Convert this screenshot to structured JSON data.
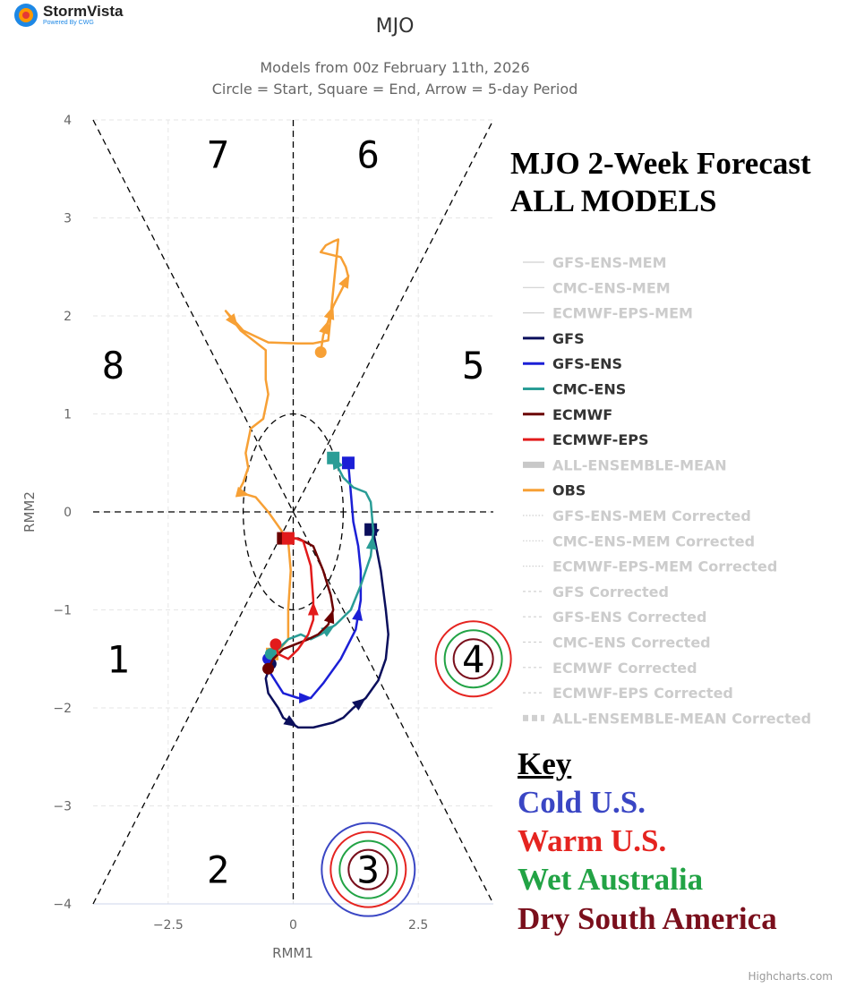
{
  "logo": {
    "name": "StormVista",
    "sub": "Powered By CWG"
  },
  "credits": "Highcharts.com",
  "overlay": {
    "headline": [
      "MJO 2-Week Forecast",
      "ALL MODELS"
    ],
    "key_title": "Key",
    "key_items": [
      {
        "label": "Cold U.S.",
        "color": "#3a46c4"
      },
      {
        "label": "Warm U.S.",
        "color": "#e52420"
      },
      {
        "label": "Wet Australia",
        "color": "#22a345"
      },
      {
        "label": "Dry South America",
        "color": "#7a0f1c"
      }
    ]
  },
  "chart_data": {
    "type": "line",
    "title": "MJO",
    "subtitle": [
      "Models from 00z February 11th, 2026",
      "Circle = Start, Square = End, Arrow = 5-day Period"
    ],
    "xlabel": "RMM1",
    "ylabel": "RMM2",
    "xlim": [
      -4,
      4
    ],
    "ylim": [
      -4,
      4
    ],
    "xticks": [
      -2.5,
      0,
      2.5
    ],
    "xtick_labels": [
      "−2.5",
      "0",
      "2.5"
    ],
    "yticks": [
      -4,
      -3,
      -2,
      -1,
      0,
      1,
      2,
      3,
      4
    ],
    "ytick_labels": [
      "−4",
      "−3",
      "−2",
      "−1",
      "0",
      "1",
      "2",
      "3",
      "4"
    ],
    "phase_labels": [
      {
        "phase": "1",
        "x": -3.5,
        "y": -1.5
      },
      {
        "phase": "2",
        "x": -1.5,
        "y": -3.65
      },
      {
        "phase": "3",
        "x": 1.5,
        "y": -3.65
      },
      {
        "phase": "4",
        "x": 3.6,
        "y": -1.5
      },
      {
        "phase": "5",
        "x": 3.6,
        "y": 1.5
      },
      {
        "phase": "6",
        "x": 1.5,
        "y": 3.65
      },
      {
        "phase": "7",
        "x": -1.5,
        "y": 3.65
      },
      {
        "phase": "8",
        "x": -3.6,
        "y": 1.5
      }
    ],
    "phase_rings": [
      {
        "x": 1.5,
        "y": -3.65,
        "rings": [
          "#3a46c4",
          "#e52420",
          "#22a345",
          "#7a0f1c"
        ]
      },
      {
        "x": 3.6,
        "y": -1.5,
        "rings": [
          "#e52420",
          "#22a345",
          "#7a0f1c"
        ]
      }
    ],
    "legend": [
      {
        "name": "GFS-ENS-MEM",
        "color": "#d0d0d0",
        "style": "faded-line"
      },
      {
        "name": "CMC-ENS-MEM",
        "color": "#d0d0d0",
        "style": "faded-line"
      },
      {
        "name": "ECMWF-EPS-MEM",
        "color": "#d0d0d0",
        "style": "faded-line"
      },
      {
        "name": "GFS",
        "color": "#0b0f5c",
        "style": "line"
      },
      {
        "name": "GFS-ENS",
        "color": "#1b1fd6",
        "style": "line"
      },
      {
        "name": "CMC-ENS",
        "color": "#2a9d96",
        "style": "line"
      },
      {
        "name": "ECMWF",
        "color": "#6b0000",
        "style": "line"
      },
      {
        "name": "ECMWF-EPS",
        "color": "#e21b1b",
        "style": "line"
      },
      {
        "name": "ALL-ENSEMBLE-MEAN",
        "color": "#c8c8c8",
        "style": "faded-thick"
      },
      {
        "name": "OBS",
        "color": "#f7a035",
        "style": "line"
      },
      {
        "name": "GFS-ENS-MEM Corrected",
        "color": "#d0d0d0",
        "style": "faded-dotted"
      },
      {
        "name": "CMC-ENS-MEM Corrected",
        "color": "#d0d0d0",
        "style": "faded-dotted"
      },
      {
        "name": "ECMWF-EPS-MEM Corrected",
        "color": "#d0d0d0",
        "style": "faded-dotted"
      },
      {
        "name": "GFS Corrected",
        "color": "#d0d0d0",
        "style": "faded-dashed"
      },
      {
        "name": "GFS-ENS Corrected",
        "color": "#d0d0d0",
        "style": "faded-dashed"
      },
      {
        "name": "CMC-ENS Corrected",
        "color": "#d0d0d0",
        "style": "faded-dashed"
      },
      {
        "name": "ECMWF Corrected",
        "color": "#d0d0d0",
        "style": "faded-dashed"
      },
      {
        "name": "ECMWF-EPS Corrected",
        "color": "#d0d0d0",
        "style": "faded-dashed"
      },
      {
        "name": "ALL-ENSEMBLE-MEAN Corrected",
        "color": "#d0d0d0",
        "style": "faded-thick-dashed"
      }
    ],
    "series": [
      {
        "name": "OBS",
        "color": "#f7a035",
        "width": 2.5,
        "points": [
          [
            0.55,
            1.63
          ],
          [
            0.6,
            1.8
          ],
          [
            0.7,
            1.95
          ],
          [
            0.8,
            2.1
          ],
          [
            0.9,
            2.2
          ],
          [
            1.0,
            2.3
          ],
          [
            1.1,
            2.4
          ],
          [
            1.05,
            2.5
          ],
          [
            0.95,
            2.6
          ],
          [
            0.55,
            2.65
          ],
          [
            0.65,
            2.72
          ],
          [
            0.8,
            2.76
          ],
          [
            0.9,
            2.78
          ],
          [
            0.7,
            1.75
          ],
          [
            0.4,
            1.72
          ],
          [
            0.1,
            1.72
          ],
          [
            -0.5,
            1.73
          ],
          [
            -1.0,
            1.85
          ],
          [
            -1.35,
            2.05
          ],
          [
            -1.05,
            1.85
          ],
          [
            -0.55,
            1.65
          ],
          [
            -0.55,
            1.35
          ],
          [
            -0.5,
            1.2
          ],
          [
            -0.6,
            0.95
          ],
          [
            -0.85,
            0.85
          ],
          [
            -0.95,
            0.6
          ],
          [
            -0.9,
            0.45
          ],
          [
            -1.0,
            0.3
          ],
          [
            -1.1,
            0.2
          ],
          [
            -0.95,
            0.18
          ],
          [
            -0.75,
            0.15
          ],
          [
            -0.5,
            0.0
          ],
          [
            -0.25,
            -0.18
          ],
          [
            -0.1,
            -0.3
          ],
          [
            -0.05,
            -0.6
          ],
          [
            -0.1,
            -1.0
          ],
          [
            -0.1,
            -1.3
          ],
          [
            -0.3,
            -1.42
          ],
          [
            -0.42,
            -1.45
          ]
        ],
        "start": [
          0.55,
          1.63
        ],
        "end": [
          -0.42,
          -1.45
        ],
        "arrows": [
          [
            2,
            2.55
          ],
          [
            1,
            2.75
          ],
          [
            5,
            1.72
          ],
          [
            18,
            0.85
          ],
          [
            28,
            0.18
          ]
        ]
      },
      {
        "name": "GFS",
        "color": "#0b0f5c",
        "width": 2.5,
        "points": [
          [
            -0.45,
            -1.55
          ],
          [
            -0.55,
            -1.7
          ],
          [
            -0.5,
            -1.85
          ],
          [
            -0.3,
            -2.0
          ],
          [
            -0.2,
            -2.1
          ],
          [
            0.1,
            -2.2
          ],
          [
            0.4,
            -2.2
          ],
          [
            0.8,
            -2.15
          ],
          [
            1.0,
            -2.1
          ],
          [
            1.2,
            -2.0
          ],
          [
            1.45,
            -1.9
          ],
          [
            1.7,
            -1.72
          ],
          [
            1.85,
            -1.5
          ],
          [
            1.9,
            -1.25
          ],
          [
            1.85,
            -1.0
          ],
          [
            1.75,
            -0.6
          ],
          [
            1.6,
            -0.2
          ],
          [
            1.55,
            -0.18
          ]
        ],
        "start": [
          -0.45,
          -1.55
        ],
        "end": [
          1.55,
          -0.18
        ],
        "arrows": [
          [
            4,
            -2.0
          ],
          [
            9,
            -2.0
          ],
          [
            16,
            -0.48
          ]
        ]
      },
      {
        "name": "GFS-ENS",
        "color": "#1b1fd6",
        "width": 2.5,
        "points": [
          [
            -0.5,
            -1.5
          ],
          [
            -0.45,
            -1.65
          ],
          [
            -0.2,
            -1.85
          ],
          [
            0.1,
            -1.9
          ],
          [
            0.35,
            -1.9
          ],
          [
            0.6,
            -1.75
          ],
          [
            0.95,
            -1.5
          ],
          [
            1.1,
            -1.35
          ],
          [
            1.25,
            -1.2
          ],
          [
            1.35,
            -0.9
          ],
          [
            1.35,
            -0.6
          ],
          [
            1.3,
            -0.35
          ],
          [
            1.2,
            -0.1
          ],
          [
            1.15,
            0.2
          ],
          [
            1.1,
            0.5
          ]
        ],
        "start": [
          -0.5,
          -1.5
        ],
        "end": [
          1.1,
          0.5
        ],
        "arrows": [
          [
            3,
            -1.85
          ],
          [
            8,
            -1.2
          ]
        ]
      },
      {
        "name": "CMC-ENS",
        "color": "#2a9d96",
        "width": 2.5,
        "points": [
          [
            -0.45,
            -1.45
          ],
          [
            -0.3,
            -1.4
          ],
          [
            -0.1,
            -1.3
          ],
          [
            0.15,
            -1.25
          ],
          [
            0.35,
            -1.3
          ],
          [
            0.55,
            -1.25
          ],
          [
            0.85,
            -1.15
          ],
          [
            1.15,
            -1.0
          ],
          [
            1.35,
            -0.75
          ],
          [
            1.55,
            -0.45
          ],
          [
            1.6,
            -0.2
          ],
          [
            1.55,
            0.1
          ],
          [
            1.45,
            0.2
          ],
          [
            1.2,
            0.25
          ],
          [
            1.0,
            0.35
          ],
          [
            0.9,
            0.45
          ],
          [
            0.8,
            0.55
          ]
        ],
        "start": [
          -0.45,
          -1.45
        ],
        "end": [
          0.8,
          0.55
        ],
        "arrows": [
          [
            5,
            -1.2
          ],
          [
            9,
            -0.28
          ],
          [
            15,
            0.42
          ]
        ]
      },
      {
        "name": "ECMWF",
        "color": "#6b0000",
        "width": 2.5,
        "points": [
          [
            -0.5,
            -1.6
          ],
          [
            -0.4,
            -1.5
          ],
          [
            -0.2,
            -1.4
          ],
          [
            0.05,
            -1.35
          ],
          [
            0.3,
            -1.3
          ],
          [
            0.5,
            -1.25
          ],
          [
            0.7,
            -1.15
          ],
          [
            0.8,
            -1.0
          ],
          [
            0.75,
            -0.85
          ],
          [
            0.6,
            -0.6
          ],
          [
            0.4,
            -0.35
          ],
          [
            0.1,
            -0.27
          ],
          [
            -0.2,
            -0.27
          ]
        ],
        "start": [
          -0.5,
          -1.6
        ],
        "end": [
          -0.2,
          -0.27
        ],
        "arrows": [
          [
            6,
            -1.15
          ]
        ]
      },
      {
        "name": "ECMWF-EPS",
        "color": "#e21b1b",
        "width": 2.5,
        "points": [
          [
            -0.35,
            -1.35
          ],
          [
            -0.3,
            -1.45
          ],
          [
            -0.1,
            -1.5
          ],
          [
            0.1,
            -1.4
          ],
          [
            0.3,
            -1.25
          ],
          [
            0.4,
            -1.1
          ],
          [
            0.4,
            -0.9
          ],
          [
            0.35,
            -0.55
          ],
          [
            0.2,
            -0.3
          ],
          [
            0.05,
            -0.27
          ],
          [
            -0.1,
            -0.27
          ]
        ],
        "start": [
          -0.35,
          -1.35
        ],
        "end": [
          -0.1,
          -0.27
        ],
        "arrows": [
          [
            5,
            -0.93
          ]
        ]
      }
    ]
  }
}
